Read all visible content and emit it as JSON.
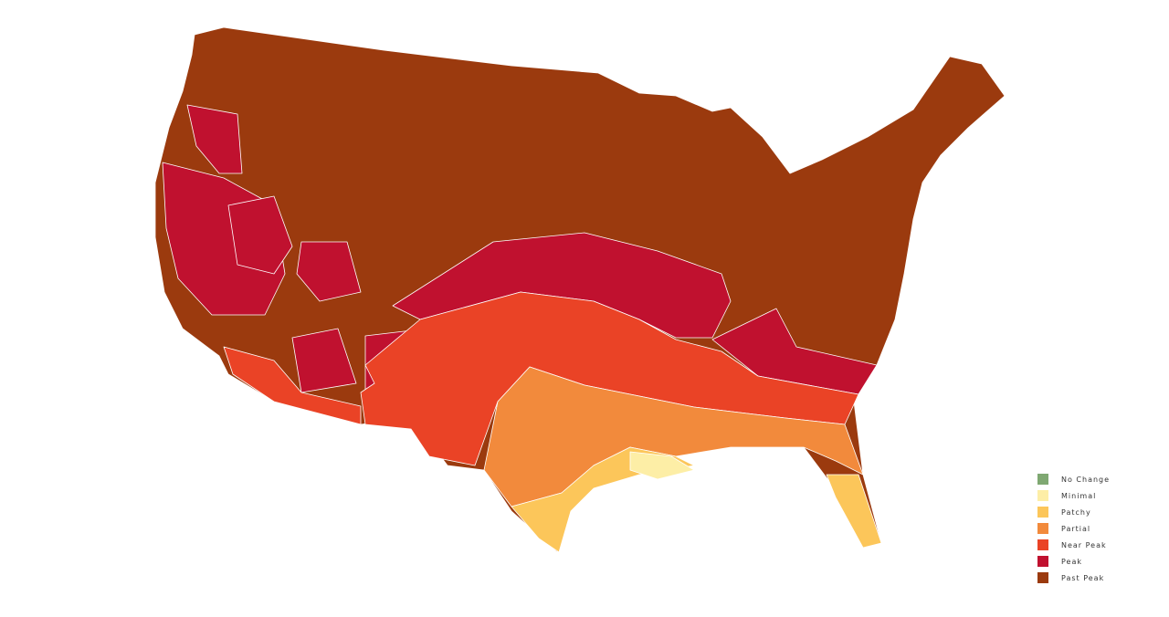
{
  "legend": {
    "items": [
      {
        "label": "No Change",
        "color": "#7fa872"
      },
      {
        "label": "Minimal",
        "color": "#fdeea6"
      },
      {
        "label": "Patchy",
        "color": "#fcc65a"
      },
      {
        "label": "Partial",
        "color": "#f28a3c"
      },
      {
        "label": "Near Peak",
        "color": "#ea4326"
      },
      {
        "label": "Peak",
        "color": "#c0112f"
      },
      {
        "label": "Past Peak",
        "color": "#9b3a0e"
      }
    ]
  }
}
